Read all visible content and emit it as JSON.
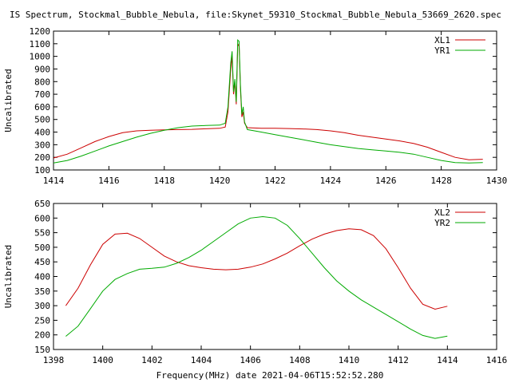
{
  "title": "IS Spectrum, Stockmal_Bubble_Nebula, file:Skynet_59310_Stockmal_Bubble_Nebula_53669_2620.spec",
  "footer_label": "Frequency(MHz) date 2021-04-06T15:52:52.280",
  "chart_data": [
    {
      "type": "line",
      "ylabel": "Uncalibrated",
      "xlim": [
        1414,
        1430
      ],
      "ylim": [
        100,
        1200
      ],
      "xticks": [
        1414,
        1416,
        1418,
        1420,
        1422,
        1424,
        1426,
        1428,
        1430
      ],
      "yticks": [
        100,
        200,
        300,
        400,
        500,
        600,
        700,
        800,
        900,
        1000,
        1100,
        1200
      ],
      "grid": false,
      "legend_position": "top-right",
      "series": [
        {
          "name": "XL1",
          "color": "#cc0000",
          "x": [
            1414.0,
            1414.5,
            1415.0,
            1415.5,
            1416.0,
            1416.5,
            1417.0,
            1417.5,
            1418.0,
            1418.5,
            1419.0,
            1419.5,
            1420.0,
            1420.2,
            1420.3,
            1420.4,
            1420.45,
            1420.5,
            1420.55,
            1420.6,
            1420.65,
            1420.7,
            1420.75,
            1420.8,
            1420.85,
            1420.9,
            1421.0,
            1421.5,
            1422.0,
            1422.5,
            1423.0,
            1423.5,
            1424.0,
            1424.5,
            1425.0,
            1425.5,
            1426.0,
            1426.5,
            1427.0,
            1427.5,
            1428.0,
            1428.5,
            1429.0,
            1429.5
          ],
          "values": [
            195,
            225,
            275,
            325,
            365,
            395,
            410,
            415,
            418,
            420,
            422,
            426,
            430,
            440,
            560,
            900,
            1000,
            700,
            800,
            620,
            1080,
            1100,
            750,
            520,
            560,
            470,
            435,
            430,
            430,
            428,
            425,
            420,
            410,
            395,
            375,
            360,
            345,
            330,
            310,
            280,
            240,
            200,
            180,
            185
          ]
        },
        {
          "name": "YR1",
          "color": "#00aa00",
          "x": [
            1414.0,
            1414.5,
            1415.0,
            1415.5,
            1416.0,
            1416.5,
            1417.0,
            1417.5,
            1418.0,
            1418.5,
            1419.0,
            1419.5,
            1420.0,
            1420.2,
            1420.3,
            1420.4,
            1420.45,
            1420.5,
            1420.55,
            1420.6,
            1420.65,
            1420.7,
            1420.75,
            1420.8,
            1420.85,
            1420.9,
            1421.0,
            1421.5,
            1422.0,
            1422.5,
            1423.0,
            1423.5,
            1424.0,
            1424.5,
            1425.0,
            1425.5,
            1426.0,
            1426.5,
            1427.0,
            1427.5,
            1428.0,
            1428.5,
            1429.0,
            1429.5
          ],
          "values": [
            155,
            175,
            210,
            250,
            290,
            325,
            360,
            390,
            415,
            435,
            448,
            452,
            455,
            470,
            600,
            950,
            1040,
            720,
            820,
            640,
            1130,
            1120,
            780,
            540,
            600,
            480,
            420,
            400,
            380,
            360,
            340,
            320,
            300,
            285,
            270,
            260,
            250,
            240,
            225,
            200,
            175,
            158,
            155,
            158
          ]
        }
      ]
    },
    {
      "type": "line",
      "ylabel": "Uncalibrated",
      "xlabel": "Frequency(MHz) date 2021-04-06T15:52:52.280",
      "xlim": [
        1398,
        1416
      ],
      "ylim": [
        150,
        650
      ],
      "xticks": [
        1398,
        1400,
        1402,
        1404,
        1406,
        1408,
        1410,
        1412,
        1414,
        1416
      ],
      "yticks": [
        150,
        200,
        250,
        300,
        350,
        400,
        450,
        500,
        550,
        600,
        650
      ],
      "grid": false,
      "legend_position": "top-right",
      "series": [
        {
          "name": "XL2",
          "color": "#cc0000",
          "x": [
            1398.5,
            1399.0,
            1399.5,
            1400.0,
            1400.5,
            1401.0,
            1401.5,
            1402.0,
            1402.5,
            1403.0,
            1403.5,
            1404.0,
            1404.5,
            1405.0,
            1405.5,
            1406.0,
            1406.5,
            1407.0,
            1407.5,
            1408.0,
            1408.5,
            1409.0,
            1409.5,
            1410.0,
            1410.5,
            1411.0,
            1411.5,
            1412.0,
            1412.5,
            1413.0,
            1413.5,
            1414.0
          ],
          "values": [
            300,
            360,
            440,
            510,
            545,
            548,
            530,
            500,
            470,
            450,
            437,
            430,
            425,
            423,
            425,
            432,
            443,
            460,
            480,
            505,
            528,
            545,
            557,
            563,
            560,
            540,
            495,
            430,
            360,
            305,
            288,
            298
          ]
        },
        {
          "name": "YR2",
          "color": "#00aa00",
          "x": [
            1398.5,
            1399.0,
            1399.5,
            1400.0,
            1400.5,
            1401.0,
            1401.5,
            1402.0,
            1402.5,
            1403.0,
            1403.5,
            1404.0,
            1404.5,
            1405.0,
            1405.5,
            1406.0,
            1406.5,
            1407.0,
            1407.5,
            1408.0,
            1408.5,
            1409.0,
            1409.5,
            1410.0,
            1410.5,
            1411.0,
            1411.5,
            1412.0,
            1412.5,
            1413.0,
            1413.5,
            1414.0
          ],
          "values": [
            195,
            230,
            290,
            350,
            390,
            410,
            425,
            428,
            432,
            445,
            465,
            490,
            520,
            550,
            580,
            600,
            605,
            600,
            575,
            530,
            480,
            430,
            385,
            350,
            320,
            295,
            270,
            245,
            220,
            198,
            188,
            196
          ]
        }
      ]
    }
  ]
}
